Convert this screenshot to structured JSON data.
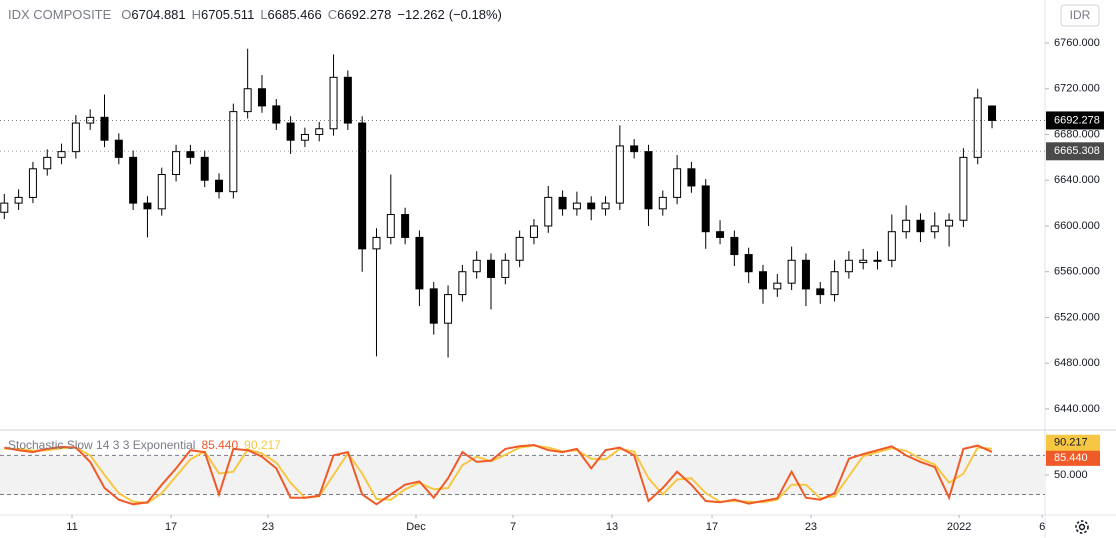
{
  "chart_data": [
    {
      "type": "candlestick",
      "title": "IDX COMPOSITE",
      "currency": "IDR",
      "ohlc_labels": [
        "O",
        "H",
        "L",
        "C"
      ],
      "change": "−12.262",
      "change_percent": "(−0.18%)",
      "up_color": "#ffffff",
      "down_color": "#000000",
      "marker_price": 6665.308,
      "xlim": [
        -0.3,
        72.7
      ],
      "ylim": [
        6421.6,
        6797.6
      ],
      "yticks": [
        {
          "value": 6440,
          "label": "6440.000"
        },
        {
          "value": 6480,
          "label": "6480.000"
        },
        {
          "value": 6520,
          "label": "6520.000"
        },
        {
          "value": 6560,
          "label": "6560.000"
        },
        {
          "value": 6600,
          "label": "6600.000"
        },
        {
          "value": 6640,
          "label": "6640.000"
        },
        {
          "value": 6680,
          "label": "6680.000"
        },
        {
          "value": 6720,
          "label": "6720.000"
        },
        {
          "value": 6760,
          "label": "6760.000"
        }
      ],
      "xticks": [
        {
          "value": 4.73,
          "label": "11"
        },
        {
          "value": 11.65,
          "label": "17"
        },
        {
          "value": 18.42,
          "label": "23"
        },
        {
          "value": 28.76,
          "label": "Dec"
        },
        {
          "value": 35.54,
          "label": "7"
        },
        {
          "value": 42.45,
          "label": "13"
        },
        {
          "value": 49.44,
          "label": "17"
        },
        {
          "value": 56.35,
          "label": "23"
        },
        {
          "value": 66.7,
          "label": "2022"
        },
        {
          "value": 72.5,
          "label": "6"
        }
      ],
      "open": [
        6612,
        6620,
        6625,
        6650,
        6660,
        6665,
        6690,
        6695,
        6675,
        6660,
        6620,
        6615,
        6645,
        6665,
        6660,
        6640,
        6630,
        6700,
        6720,
        6705,
        6690,
        6675,
        6680,
        6685,
        6730,
        6690,
        6580,
        6590,
        6610,
        6590,
        6545,
        6515,
        6540,
        6560,
        6570,
        6555,
        6570,
        6590,
        6600,
        6625,
        6615,
        6620,
        6615,
        6620,
        6670,
        6665,
        6615,
        6625,
        6650,
        6635,
        6595,
        6590,
        6575,
        6560,
        6545,
        6550,
        6570,
        6545,
        6540,
        6560,
        6568,
        6570,
        6570,
        6595,
        6605,
        6595,
        6600,
        6605,
        6660,
        6704.881
      ],
      "high": [
        6628,
        6632,
        6656,
        6667,
        6672,
        6697,
        6702,
        6715,
        6681,
        6666,
        6626,
        6651,
        6671,
        6671,
        6666,
        6646,
        6707,
        6755,
        6732,
        6711,
        6696,
        6686,
        6691,
        6750,
        6736,
        6696,
        6598,
        6645,
        6616,
        6596,
        6551,
        6548,
        6566,
        6578,
        6576,
        6576,
        6596,
        6606,
        6635,
        6631,
        6630,
        6626,
        6626,
        6688,
        6676,
        6671,
        6631,
        6662,
        6656,
        6641,
        6605,
        6596,
        6581,
        6566,
        6558,
        6582,
        6576,
        6551,
        6570,
        6578,
        6580,
        6578,
        6610,
        6618,
        6611,
        6612,
        6611,
        6668,
        6720,
        6705.511
      ],
      "low": [
        6606,
        6614,
        6620,
        6644,
        6654,
        6659,
        6684,
        6669,
        6654,
        6614,
        6590,
        6609,
        6639,
        6654,
        6634,
        6624,
        6624,
        6694,
        6699,
        6684,
        6663,
        6669,
        6674,
        6679,
        6684,
        6560,
        6486,
        6584,
        6584,
        6530,
        6505,
        6485,
        6534,
        6554,
        6527,
        6549,
        6564,
        6584,
        6594,
        6609,
        6609,
        6605,
        6609,
        6614,
        6659,
        6600,
        6609,
        6619,
        6629,
        6580,
        6584,
        6565,
        6550,
        6532,
        6538,
        6544,
        6530,
        6532,
        6534,
        6554,
        6562,
        6562,
        6564,
        6589,
        6586,
        6589,
        6582,
        6599,
        6654,
        6685.466
      ],
      "close": [
        6620,
        6625,
        6650,
        6660,
        6665,
        6690,
        6695,
        6675,
        6660,
        6620,
        6615,
        6645,
        6665,
        6660,
        6640,
        6630,
        6700,
        6720,
        6705,
        6690,
        6675,
        6680,
        6685,
        6730,
        6690,
        6580,
        6590,
        6610,
        6590,
        6545,
        6515,
        6540,
        6560,
        6570,
        6555,
        6570,
        6590,
        6600,
        6625,
        6615,
        6620,
        6615,
        6620,
        6670,
        6665,
        6615,
        6625,
        6650,
        6635,
        6595,
        6590,
        6575,
        6560,
        6545,
        6550,
        6570,
        6545,
        6540,
        6560,
        6570,
        6570,
        6570,
        6595,
        6605,
        6595,
        6600,
        6605,
        6660,
        6712,
        6692.278
      ]
    },
    {
      "type": "line",
      "title": "Stochastic Slow 14 3 3 Exponential",
      "ylim": [
        -11.5,
        119
      ],
      "yticks": [
        {
          "value": 50,
          "label": "50.000"
        }
      ],
      "bands": [
        20,
        80
      ],
      "series": [
        {
          "color": "#f05a28",
          "last_label": "85.440",
          "values": [
            92,
            88,
            85,
            90,
            93,
            92,
            70,
            30,
            12,
            5,
            8,
            35,
            60,
            88,
            85,
            20,
            90,
            88,
            78,
            60,
            15,
            15,
            18,
            80,
            85,
            20,
            5,
            20,
            35,
            40,
            15,
            45,
            85,
            70,
            72,
            90,
            94,
            96,
            88,
            85,
            90,
            60,
            88,
            92,
            80,
            10,
            30,
            55,
            35,
            10,
            8,
            12,
            6,
            10,
            14,
            55,
            15,
            12,
            22,
            75,
            82,
            88,
            94,
            80,
            70,
            62,
            15,
            90,
            95,
            85.44
          ]
        },
        {
          "color": "#f7c744",
          "last_label": "90.217",
          "values": [
            90,
            90,
            87,
            88,
            91,
            92,
            80,
            50,
            22,
            9,
            7,
            22,
            48,
            74,
            86,
            52,
            55,
            89,
            83,
            69,
            38,
            15,
            17,
            50,
            83,
            52,
            13,
            12,
            28,
            38,
            28,
            30,
            65,
            78,
            71,
            81,
            92,
            95,
            92,
            86,
            88,
            75,
            74,
            90,
            86,
            45,
            20,
            43,
            45,
            22,
            9,
            10,
            9,
            8,
            12,
            35,
            35,
            14,
            17,
            48,
            79,
            85,
            91,
            87,
            75,
            66,
            38,
            52,
            92,
            90.217
          ]
        }
      ]
    }
  ]
}
